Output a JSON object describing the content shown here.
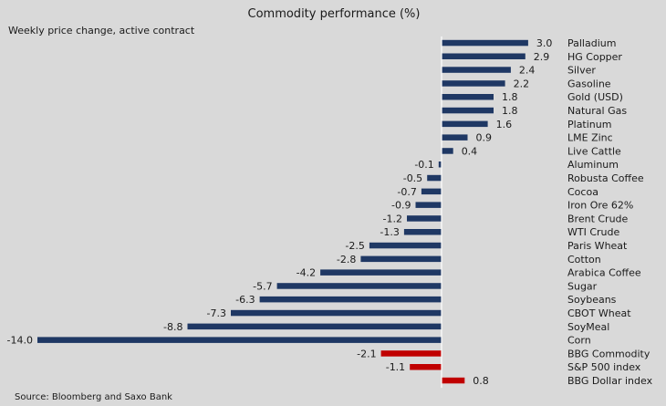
{
  "chart_data": {
    "type": "bar",
    "orientation": "horizontal",
    "title": "Commodity  performance  (%)",
    "subtitle": "Weekly price change, active contract",
    "source": "Source: Bloomberg and Saxo Bank",
    "xlim": [
      -14.0,
      3.0
    ],
    "bars": [
      {
        "label": "Palladium",
        "value": 3.0,
        "display": "3.0",
        "group": "commodity"
      },
      {
        "label": "HG Copper",
        "value": 2.9,
        "display": "2.9",
        "group": "commodity"
      },
      {
        "label": "Silver",
        "value": 2.4,
        "display": "2.4",
        "group": "commodity"
      },
      {
        "label": "Gasoline",
        "value": 2.2,
        "display": "2.2",
        "group": "commodity"
      },
      {
        "label": "Gold (USD)",
        "value": 1.8,
        "display": "1.8",
        "group": "commodity"
      },
      {
        "label": "Natural Gas",
        "value": 1.8,
        "display": "1.8",
        "group": "commodity"
      },
      {
        "label": "Platinum",
        "value": 1.6,
        "display": "1.6",
        "group": "commodity"
      },
      {
        "label": "LME Zinc",
        "value": 0.9,
        "display": "0.9",
        "group": "commodity"
      },
      {
        "label": "Live Cattle",
        "value": 0.4,
        "display": "0.4",
        "group": "commodity"
      },
      {
        "label": "Aluminum",
        "value": -0.1,
        "display": "-0.1",
        "group": "commodity"
      },
      {
        "label": "Robusta Coffee",
        "value": -0.5,
        "display": "-0.5",
        "group": "commodity"
      },
      {
        "label": "Cocoa",
        "value": -0.7,
        "display": "-0.7",
        "group": "commodity"
      },
      {
        "label": "Iron Ore 62%",
        "value": -0.9,
        "display": "-0.9",
        "group": "commodity"
      },
      {
        "label": "Brent Crude",
        "value": -1.2,
        "display": "-1.2",
        "group": "commodity"
      },
      {
        "label": "WTI Crude",
        "value": -1.3,
        "display": "-1.3",
        "group": "commodity"
      },
      {
        "label": "Paris Wheat",
        "value": -2.5,
        "display": "-2.5",
        "group": "commodity"
      },
      {
        "label": "Cotton",
        "value": -2.8,
        "display": "-2.8",
        "group": "commodity"
      },
      {
        "label": "Arabica Coffee",
        "value": -4.2,
        "display": "-4.2",
        "group": "commodity"
      },
      {
        "label": "Sugar",
        "value": -5.7,
        "display": "-5.7",
        "group": "commodity"
      },
      {
        "label": "Soybeans",
        "value": -6.3,
        "display": "-6.3",
        "group": "commodity"
      },
      {
        "label": "CBOT Wheat",
        "value": -7.3,
        "display": "-7.3",
        "group": "commodity"
      },
      {
        "label": "SoyMeal",
        "value": -8.8,
        "display": "-8.8",
        "group": "commodity"
      },
      {
        "label": "Corn",
        "value": -14.0,
        "display": "-14.0",
        "group": "commodity"
      },
      {
        "label": "BBG Commodity",
        "value": -2.1,
        "display": "-2.1",
        "group": "benchmark"
      },
      {
        "label": "S&P 500 index",
        "value": -1.1,
        "display": "-1.1",
        "group": "benchmark"
      },
      {
        "label": "BBG Dollar index",
        "value": 0.8,
        "display": "0.8",
        "group": "benchmark"
      }
    ],
    "colors": {
      "commodity": "#1f3864",
      "benchmark": "#c00000",
      "axis": "#ffffff",
      "background": "#d9d9d9"
    }
  }
}
